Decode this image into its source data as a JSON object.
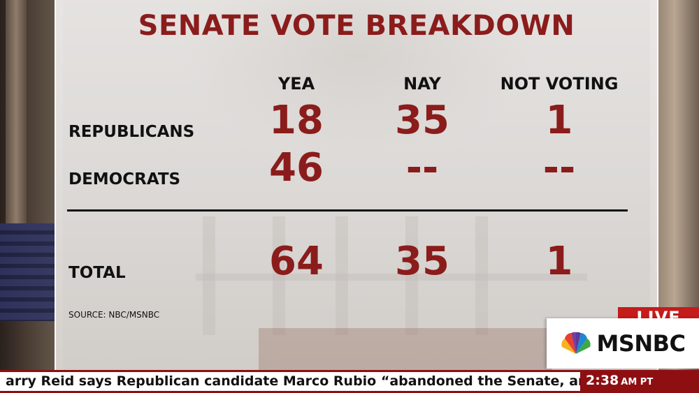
{
  "graphic": {
    "title": "SENATE VOTE BREAKDOWN",
    "columns": [
      "YEA",
      "NAY",
      "NOT VOTING"
    ],
    "rows": [
      {
        "label": "REPUBLICANS",
        "values": [
          "18",
          "35",
          "1"
        ]
      },
      {
        "label": "DEMOCRATS",
        "values": [
          "46",
          "--",
          "--"
        ]
      }
    ],
    "total": {
      "label": "TOTAL",
      "values": [
        "64",
        "35",
        "1"
      ]
    },
    "source": "SOURCE: NBC/MSNBC"
  },
  "broadcast": {
    "live_label": "LIVE",
    "network": "MSNBC",
    "logo_icon": "peacock-icon",
    "ticker_text": "arry Reid says Republican candidate Marco Rubio  “abandoned the Senate, and ",
    "time": "2:38",
    "time_zone": "AM PT"
  },
  "colors": {
    "accent_red": "#8b1c1c",
    "live_red": "#c41b1b",
    "ticker_red": "#8e0f12"
  }
}
